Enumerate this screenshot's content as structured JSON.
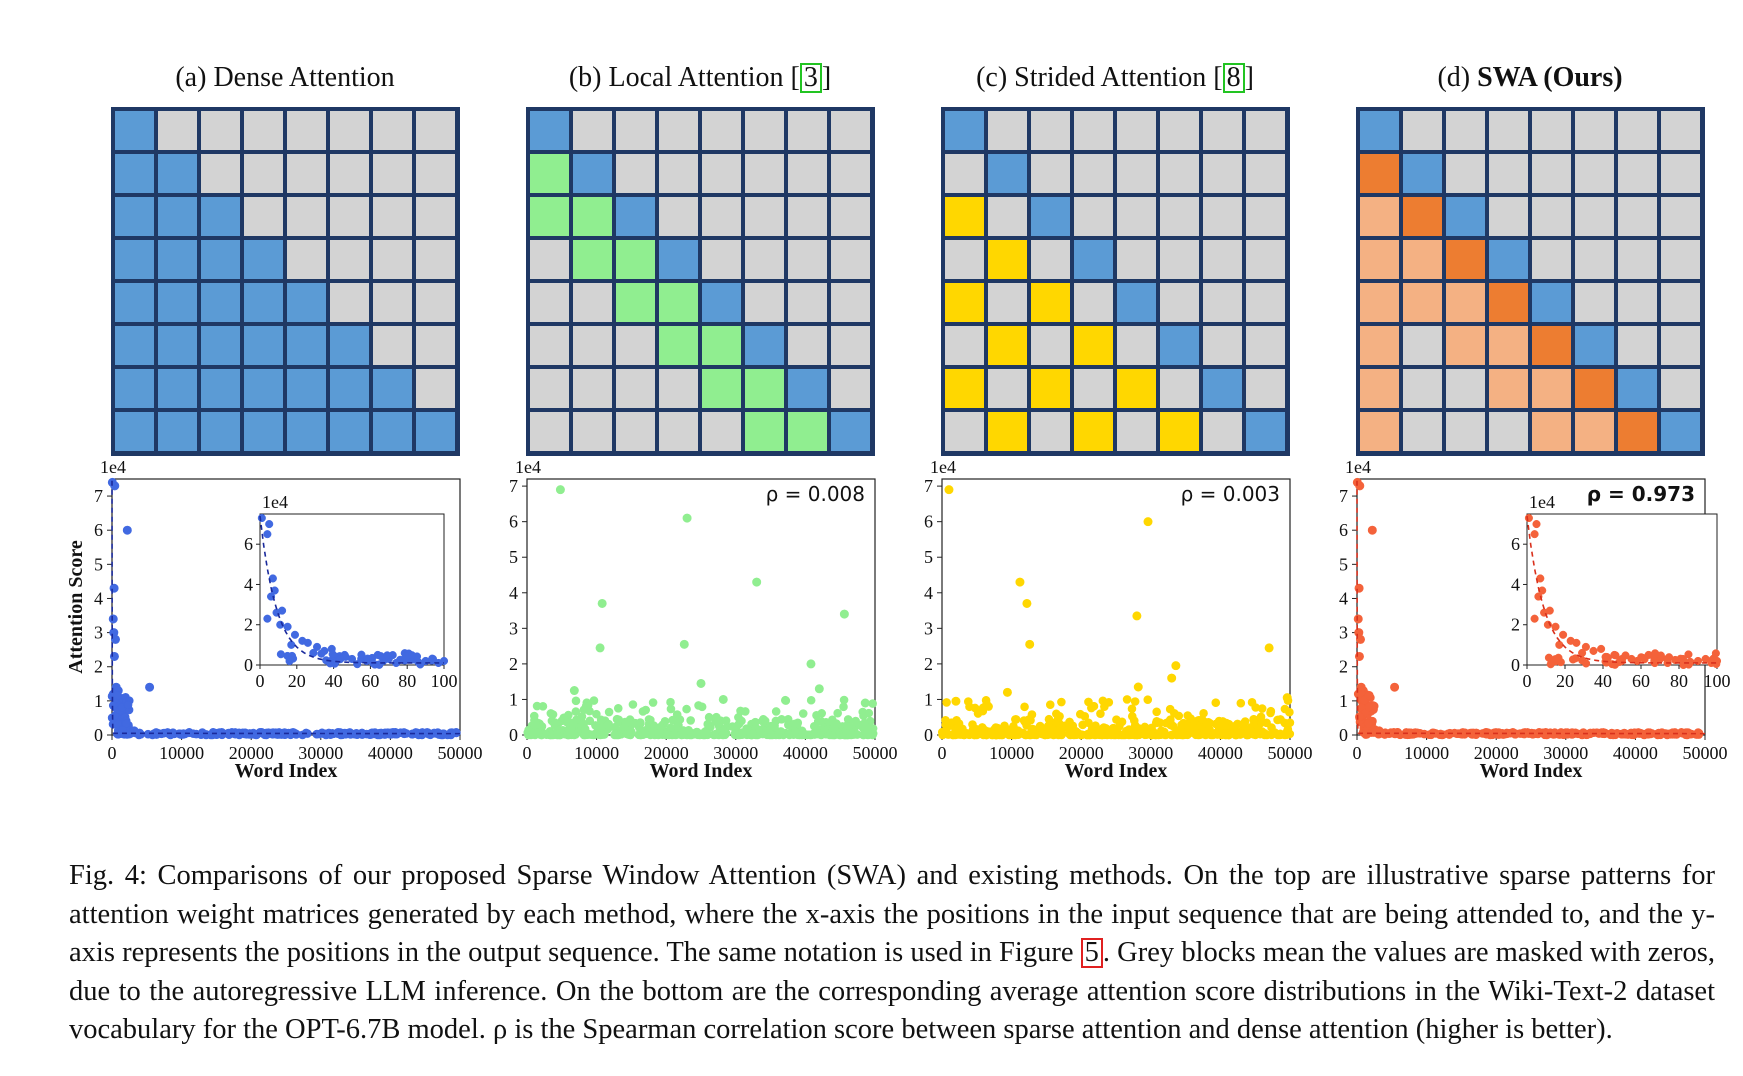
{
  "panels": [
    {
      "id": "a",
      "title_prefix": "(a) ",
      "title_main": "Dense Attention",
      "ref": "",
      "title_suffix": "",
      "bold": false,
      "scheme": "dense",
      "rho": "",
      "inset": true,
      "color": "#4169e1",
      "ylabel": "Attention Score"
    },
    {
      "id": "b",
      "title_prefix": "(b) ",
      "title_main": "Local Attention [",
      "ref": "3",
      "title_suffix": "]",
      "bold": false,
      "scheme": "local",
      "rho": "ρ = 0.008",
      "inset": false,
      "color": "#90ee90",
      "ylabel": ""
    },
    {
      "id": "c",
      "title_prefix": "(c) ",
      "title_main": "Strided Attention [",
      "ref": "8",
      "title_suffix": "]",
      "bold": false,
      "scheme": "strided",
      "rho": "ρ = 0.003",
      "inset": false,
      "color": "#ffd700",
      "ylabel": ""
    },
    {
      "id": "d",
      "title_prefix": "(d) ",
      "title_main": "SWA (Ours)",
      "ref": "",
      "title_suffix": "",
      "bold": true,
      "scheme": "swa",
      "rho": "ρ = 0.973",
      "inset": true,
      "color": "#f4623a",
      "ylabel": ""
    }
  ],
  "matrix_colors": {
    "grey": "#d3d3d3",
    "blue": "#5b9bd5",
    "green": "#90ee90",
    "yellow": "#ffd700",
    "orange": "#ed7d31",
    "light_orange": "#f4b183",
    "border": "#1f3864"
  },
  "chart_data": [
    {
      "type": "scatter",
      "panel": "a",
      "xlabel": "Word Index",
      "ylabel": "Attention Score",
      "exponent_label": "1e4",
      "xlim": [
        0,
        50000
      ],
      "ylim": [
        0,
        7.5
      ],
      "xticks": [
        "0",
        "10000",
        "20000",
        "30000",
        "40000",
        "50000"
      ],
      "yticks": [
        "0",
        "1",
        "2",
        "3",
        "4",
        "5",
        "6",
        "7"
      ],
      "inset": {
        "exponent_label": "1e4",
        "xlim": [
          0,
          100
        ],
        "ylim": [
          0,
          7.5
        ],
        "xticks": [
          "0",
          "20",
          "40",
          "60",
          "80",
          "100"
        ],
        "yticks": [
          "0",
          "2",
          "4",
          "6"
        ]
      }
    },
    {
      "type": "scatter",
      "panel": "b",
      "xlabel": "Word Index",
      "exponent_label": "1e4",
      "annotation": "ρ = 0.008",
      "xlim": [
        0,
        50000
      ],
      "ylim": [
        0,
        7.2
      ],
      "xticks": [
        "0",
        "10000",
        "20000",
        "30000",
        "40000",
        "50000"
      ],
      "yticks": [
        "0",
        "1",
        "2",
        "3",
        "4",
        "5",
        "6",
        "7"
      ],
      "highlights": [
        [
          4800,
          6.9
        ],
        [
          23000,
          6.1
        ],
        [
          10800,
          3.7
        ],
        [
          33000,
          4.3
        ],
        [
          45600,
          3.4
        ],
        [
          10500,
          2.45
        ],
        [
          22600,
          2.55
        ],
        [
          40800,
          2.0
        ],
        [
          42000,
          1.3
        ],
        [
          25000,
          1.45
        ],
        [
          28200,
          1.0
        ],
        [
          6800,
          1.25
        ],
        [
          48600,
          0.9
        ]
      ]
    },
    {
      "type": "scatter",
      "panel": "c",
      "xlabel": "Word Index",
      "exponent_label": "1e4",
      "annotation": "ρ = 0.003",
      "xlim": [
        0,
        50000
      ],
      "ylim": [
        0,
        7.2
      ],
      "xticks": [
        "0",
        "10000",
        "20000",
        "30000",
        "40000",
        "50000"
      ],
      "yticks": [
        "0",
        "1",
        "2",
        "3",
        "4",
        "5",
        "6",
        "7"
      ],
      "highlights": [
        [
          1000,
          6.9
        ],
        [
          29600,
          6.0
        ],
        [
          11200,
          4.3
        ],
        [
          12200,
          3.7
        ],
        [
          28000,
          3.35
        ],
        [
          12600,
          2.55
        ],
        [
          47000,
          2.45
        ],
        [
          33600,
          1.95
        ],
        [
          33000,
          1.6
        ],
        [
          28200,
          1.35
        ],
        [
          49600,
          1.05
        ],
        [
          2000,
          0.95
        ],
        [
          9400,
          1.2
        ]
      ]
    },
    {
      "type": "scatter",
      "panel": "d",
      "xlabel": "Word Index",
      "exponent_label": "1e4",
      "annotation": "ρ = 0.973",
      "xlim": [
        0,
        50000
      ],
      "ylim": [
        0,
        7.5
      ],
      "xticks": [
        "0",
        "10000",
        "20000",
        "30000",
        "40000",
        "50000"
      ],
      "yticks": [
        "0",
        "1",
        "2",
        "3",
        "4",
        "5",
        "6",
        "7"
      ],
      "inset": {
        "exponent_label": "1e4",
        "xlim": [
          0,
          100
        ],
        "ylim": [
          0,
          7.5
        ],
        "xticks": [
          "0",
          "20",
          "40",
          "60",
          "80",
          "100"
        ],
        "yticks": [
          "0",
          "2",
          "4",
          "6"
        ]
      }
    }
  ],
  "caption": {
    "text_before": "Fig. 4: Comparisons of our proposed Sparse Window Attention (SWA) and existing methods. On the top are illustrative sparse patterns for attention weight matrices generated by each method, where the x-axis the positions in the input sequence that are being attended to, and the y-axis represents the positions in the output sequence. The same notation is used in Figure ",
    "ref": "5",
    "text_after": ". Grey blocks mean the values are masked with zeros, due to the autoregressive LLM inference. On the bottom are the corresponding average attention score distributions in the Wiki-Text-2 dataset vocabulary for the OPT-6.7B model. ρ is the Spearman correlation score between sparse attention and dense attention (higher is better)."
  }
}
